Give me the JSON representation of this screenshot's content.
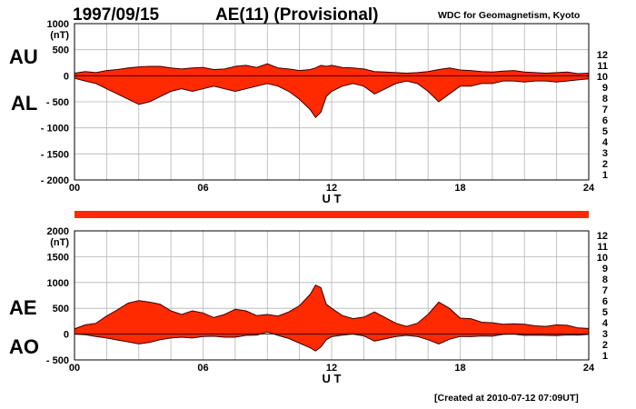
{
  "header": {
    "date": "1997/09/15",
    "title": "AE(11) (Provisional)",
    "source": "WDC for Geomagnetism, Kyoto"
  },
  "footer": {
    "created": "[Created at 2010-07-12 07:09UT]"
  },
  "station_legend": {
    "labels": [
      "12",
      "11",
      "10",
      "9",
      "8",
      "7",
      "6",
      "5",
      "4",
      "3",
      "2",
      "1"
    ],
    "colors": [
      "#ff1493",
      "#ff0000",
      "#ffa500",
      "#e6e600",
      "#7cfc00",
      "#00e0e0",
      "#1e90ff",
      "#0000cd",
      "#cc00cc",
      "#000000",
      "#555555",
      "#aaaaaa"
    ]
  },
  "colors": {
    "fill": "#ff2a00",
    "line": "#3a0000",
    "grid": "#b5b5b5"
  },
  "chart_data": [
    {
      "type": "area",
      "panel": "AU/AL",
      "unit_label": "(nT)",
      "xlabel": "U T",
      "x_ticks": [
        "00",
        "06",
        "12",
        "18",
        "24"
      ],
      "xlim": [
        0,
        24
      ],
      "ylim": [
        -2000,
        1000
      ],
      "y_ticks": [
        "1000",
        "500",
        "0",
        "- 500",
        "- 1000",
        "- 1500",
        "- 2000"
      ],
      "y_tick_values": [
        1000,
        500,
        0,
        -500,
        -1000,
        -1500,
        -2000
      ],
      "series": [
        {
          "name": "AU",
          "x": [
            0,
            0.5,
            1,
            1.5,
            2,
            2.5,
            3,
            3.5,
            4,
            4.5,
            5,
            5.5,
            6,
            6.5,
            7,
            7.5,
            8,
            8.5,
            9,
            9.5,
            10,
            10.5,
            11,
            11.25,
            11.5,
            11.75,
            12,
            12.5,
            13,
            13.5,
            14,
            14.5,
            15,
            15.5,
            16,
            16.5,
            17,
            17.5,
            18,
            18.5,
            19,
            19.5,
            20,
            20.5,
            21,
            21.5,
            22,
            22.5,
            23,
            23.5,
            24
          ],
          "values": [
            50,
            80,
            60,
            100,
            120,
            150,
            170,
            180,
            180,
            150,
            130,
            150,
            160,
            120,
            130,
            180,
            200,
            160,
            230,
            150,
            130,
            100,
            120,
            150,
            200,
            180,
            200,
            160,
            150,
            130,
            80,
            70,
            60,
            50,
            60,
            80,
            120,
            150,
            110,
            100,
            80,
            70,
            90,
            100,
            70,
            60,
            50,
            60,
            70,
            40,
            50
          ]
        },
        {
          "name": "AL",
          "x": [
            0,
            0.5,
            1,
            1.5,
            2,
            2.5,
            3,
            3.5,
            4,
            4.5,
            5,
            5.5,
            6,
            6.5,
            7,
            7.5,
            8,
            8.5,
            9,
            9.5,
            10,
            10.5,
            11,
            11.25,
            11.5,
            11.75,
            12,
            12.5,
            13,
            13.5,
            14,
            14.5,
            15,
            15.5,
            16,
            16.5,
            17,
            17.5,
            18,
            18.5,
            19,
            19.5,
            20,
            20.5,
            21,
            21.5,
            22,
            22.5,
            23,
            23.5,
            24
          ],
          "values": [
            -50,
            -100,
            -150,
            -250,
            -350,
            -450,
            -550,
            -500,
            -400,
            -300,
            -250,
            -300,
            -250,
            -200,
            -250,
            -300,
            -250,
            -200,
            -150,
            -200,
            -300,
            -450,
            -650,
            -800,
            -700,
            -400,
            -300,
            -200,
            -150,
            -200,
            -350,
            -250,
            -150,
            -100,
            -150,
            -300,
            -500,
            -350,
            -200,
            -200,
            -150,
            -150,
            -100,
            -100,
            -120,
            -100,
            -100,
            -120,
            -100,
            -80,
            -60
          ]
        }
      ]
    },
    {
      "type": "area",
      "panel": "AE/AO",
      "unit_label": "(nT)",
      "xlabel": "U T",
      "x_ticks": [
        "00",
        "06",
        "12",
        "18",
        "24"
      ],
      "xlim": [
        0,
        24
      ],
      "ylim": [
        -500,
        2000
      ],
      "y_ticks": [
        "2000",
        "1500",
        "1000",
        "500",
        "0",
        "- 500"
      ],
      "y_tick_values": [
        2000,
        1500,
        1000,
        500,
        0,
        -500
      ],
      "series": [
        {
          "name": "AE",
          "x": [
            0,
            0.5,
            1,
            1.5,
            2,
            2.5,
            3,
            3.5,
            4,
            4.5,
            5,
            5.5,
            6,
            6.5,
            7,
            7.5,
            8,
            8.5,
            9,
            9.5,
            10,
            10.5,
            11,
            11.25,
            11.5,
            11.75,
            12,
            12.5,
            13,
            13.5,
            14,
            14.5,
            15,
            15.5,
            16,
            16.5,
            17,
            17.5,
            18,
            18.5,
            19,
            19.5,
            20,
            20.5,
            21,
            21.5,
            22,
            22.5,
            23,
            23.5,
            24
          ],
          "values": [
            100,
            180,
            210,
            350,
            470,
            600,
            650,
            620,
            580,
            450,
            380,
            450,
            410,
            320,
            380,
            480,
            450,
            360,
            380,
            350,
            430,
            550,
            770,
            950,
            900,
            580,
            500,
            360,
            300,
            330,
            430,
            320,
            210,
            150,
            210,
            380,
            620,
            500,
            310,
            300,
            230,
            220,
            190,
            200,
            190,
            160,
            150,
            180,
            170,
            120,
            110
          ]
        },
        {
          "name": "AO",
          "x": [
            0,
            0.5,
            1,
            1.5,
            2,
            2.5,
            3,
            3.5,
            4,
            4.5,
            5,
            5.5,
            6,
            6.5,
            7,
            7.5,
            8,
            8.5,
            9,
            9.5,
            10,
            10.5,
            11,
            11.25,
            11.5,
            11.75,
            12,
            12.5,
            13,
            13.5,
            14,
            14.5,
            15,
            15.5,
            16,
            16.5,
            17,
            17.5,
            18,
            18.5,
            19,
            19.5,
            20,
            20.5,
            21,
            21.5,
            22,
            22.5,
            23,
            23.5,
            24
          ],
          "values": [
            0,
            -10,
            -45,
            -75,
            -115,
            -150,
            -190,
            -160,
            -110,
            -75,
            -60,
            -75,
            -45,
            -40,
            -60,
            -60,
            -25,
            -20,
            40,
            -25,
            -85,
            -175,
            -265,
            -325,
            -250,
            -110,
            -50,
            -20,
            0,
            -35,
            -135,
            -90,
            -45,
            -25,
            -45,
            -110,
            -190,
            -100,
            -45,
            -50,
            -35,
            -40,
            -5,
            0,
            -25,
            -20,
            -25,
            -30,
            -15,
            -20,
            -5
          ]
        }
      ]
    }
  ],
  "panel_labels": {
    "top_upper": "AU",
    "top_lower": "AL",
    "bottom_upper": "AE",
    "bottom_lower": "AO"
  }
}
